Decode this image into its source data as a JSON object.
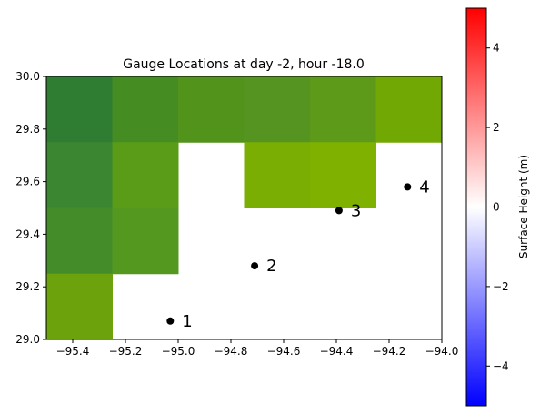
{
  "chart_data": {
    "type": "heatmap",
    "title": "Gauge Locations at day  -2, hour -18.0",
    "xlim": [
      -95.5,
      -94.0
    ],
    "ylim": [
      29.0,
      30.0
    ],
    "xticks": [
      -95.4,
      -95.2,
      -95.0,
      -94.8,
      -94.6,
      -94.4,
      -94.2,
      -94.0
    ],
    "xtick_labels": [
      "−95.4",
      "−95.2",
      "−95.0",
      "−94.8",
      "−94.6",
      "−94.4",
      "−94.2",
      "−94.0"
    ],
    "yticks": [
      29.0,
      29.2,
      29.4,
      29.6,
      29.8,
      30.0
    ],
    "ytick_labels": [
      "29.0",
      "29.2",
      "29.4",
      "29.6",
      "29.8",
      "30.0"
    ],
    "cells": [
      {
        "x0": -95.5,
        "x1": -95.25,
        "y0": 29.75,
        "y1": 30.0,
        "color": "#2e7d32"
      },
      {
        "x0": -95.25,
        "x1": -95.0,
        "y0": 29.75,
        "y1": 30.0,
        "color": "#458c22"
      },
      {
        "x0": -95.0,
        "x1": -94.75,
        "y0": 29.75,
        "y1": 30.0,
        "color": "#52941b"
      },
      {
        "x0": -94.75,
        "x1": -94.5,
        "y0": 29.75,
        "y1": 30.0,
        "color": "#559421"
      },
      {
        "x0": -94.5,
        "x1": -94.25,
        "y0": 29.75,
        "y1": 30.0,
        "color": "#5e9a1a"
      },
      {
        "x0": -94.25,
        "x1": -94.0,
        "y0": 29.75,
        "y1": 30.0,
        "color": "#72a804"
      },
      {
        "x0": -95.5,
        "x1": -95.25,
        "y0": 29.5,
        "y1": 29.75,
        "color": "#3b8630"
      },
      {
        "x0": -95.25,
        "x1": -95.0,
        "y0": 29.5,
        "y1": 29.75,
        "color": "#5a9c18"
      },
      {
        "x0": -94.75,
        "x1": -94.5,
        "y0": 29.5,
        "y1": 29.75,
        "color": "#7aae02"
      },
      {
        "x0": -94.5,
        "x1": -94.25,
        "y0": 29.5,
        "y1": 29.75,
        "color": "#7fb200"
      },
      {
        "x0": -95.5,
        "x1": -95.25,
        "y0": 29.25,
        "y1": 29.5,
        "color": "#448c2a"
      },
      {
        "x0": -95.25,
        "x1": -95.0,
        "y0": 29.25,
        "y1": 29.5,
        "color": "#559820"
      },
      {
        "x0": -95.5,
        "x1": -95.25,
        "y0": 29.0,
        "y1": 29.25,
        "color": "#6ca30c"
      }
    ],
    "gauges": [
      {
        "label": "1",
        "x": -95.03,
        "y": 29.07
      },
      {
        "label": "2",
        "x": -94.71,
        "y": 29.28
      },
      {
        "label": "3",
        "x": -94.39,
        "y": 29.49
      },
      {
        "label": "4",
        "x": -94.13,
        "y": 29.58
      }
    ],
    "colorbar": {
      "label": "Surface Height (m)",
      "range": [
        -5,
        5
      ],
      "ticks": [
        4,
        2,
        0,
        -2,
        -4
      ],
      "tick_labels": [
        "4",
        "2",
        "0",
        "−2",
        "−4"
      ],
      "colors": [
        "#0000ff",
        "#ffffff",
        "#ff0000"
      ]
    }
  }
}
